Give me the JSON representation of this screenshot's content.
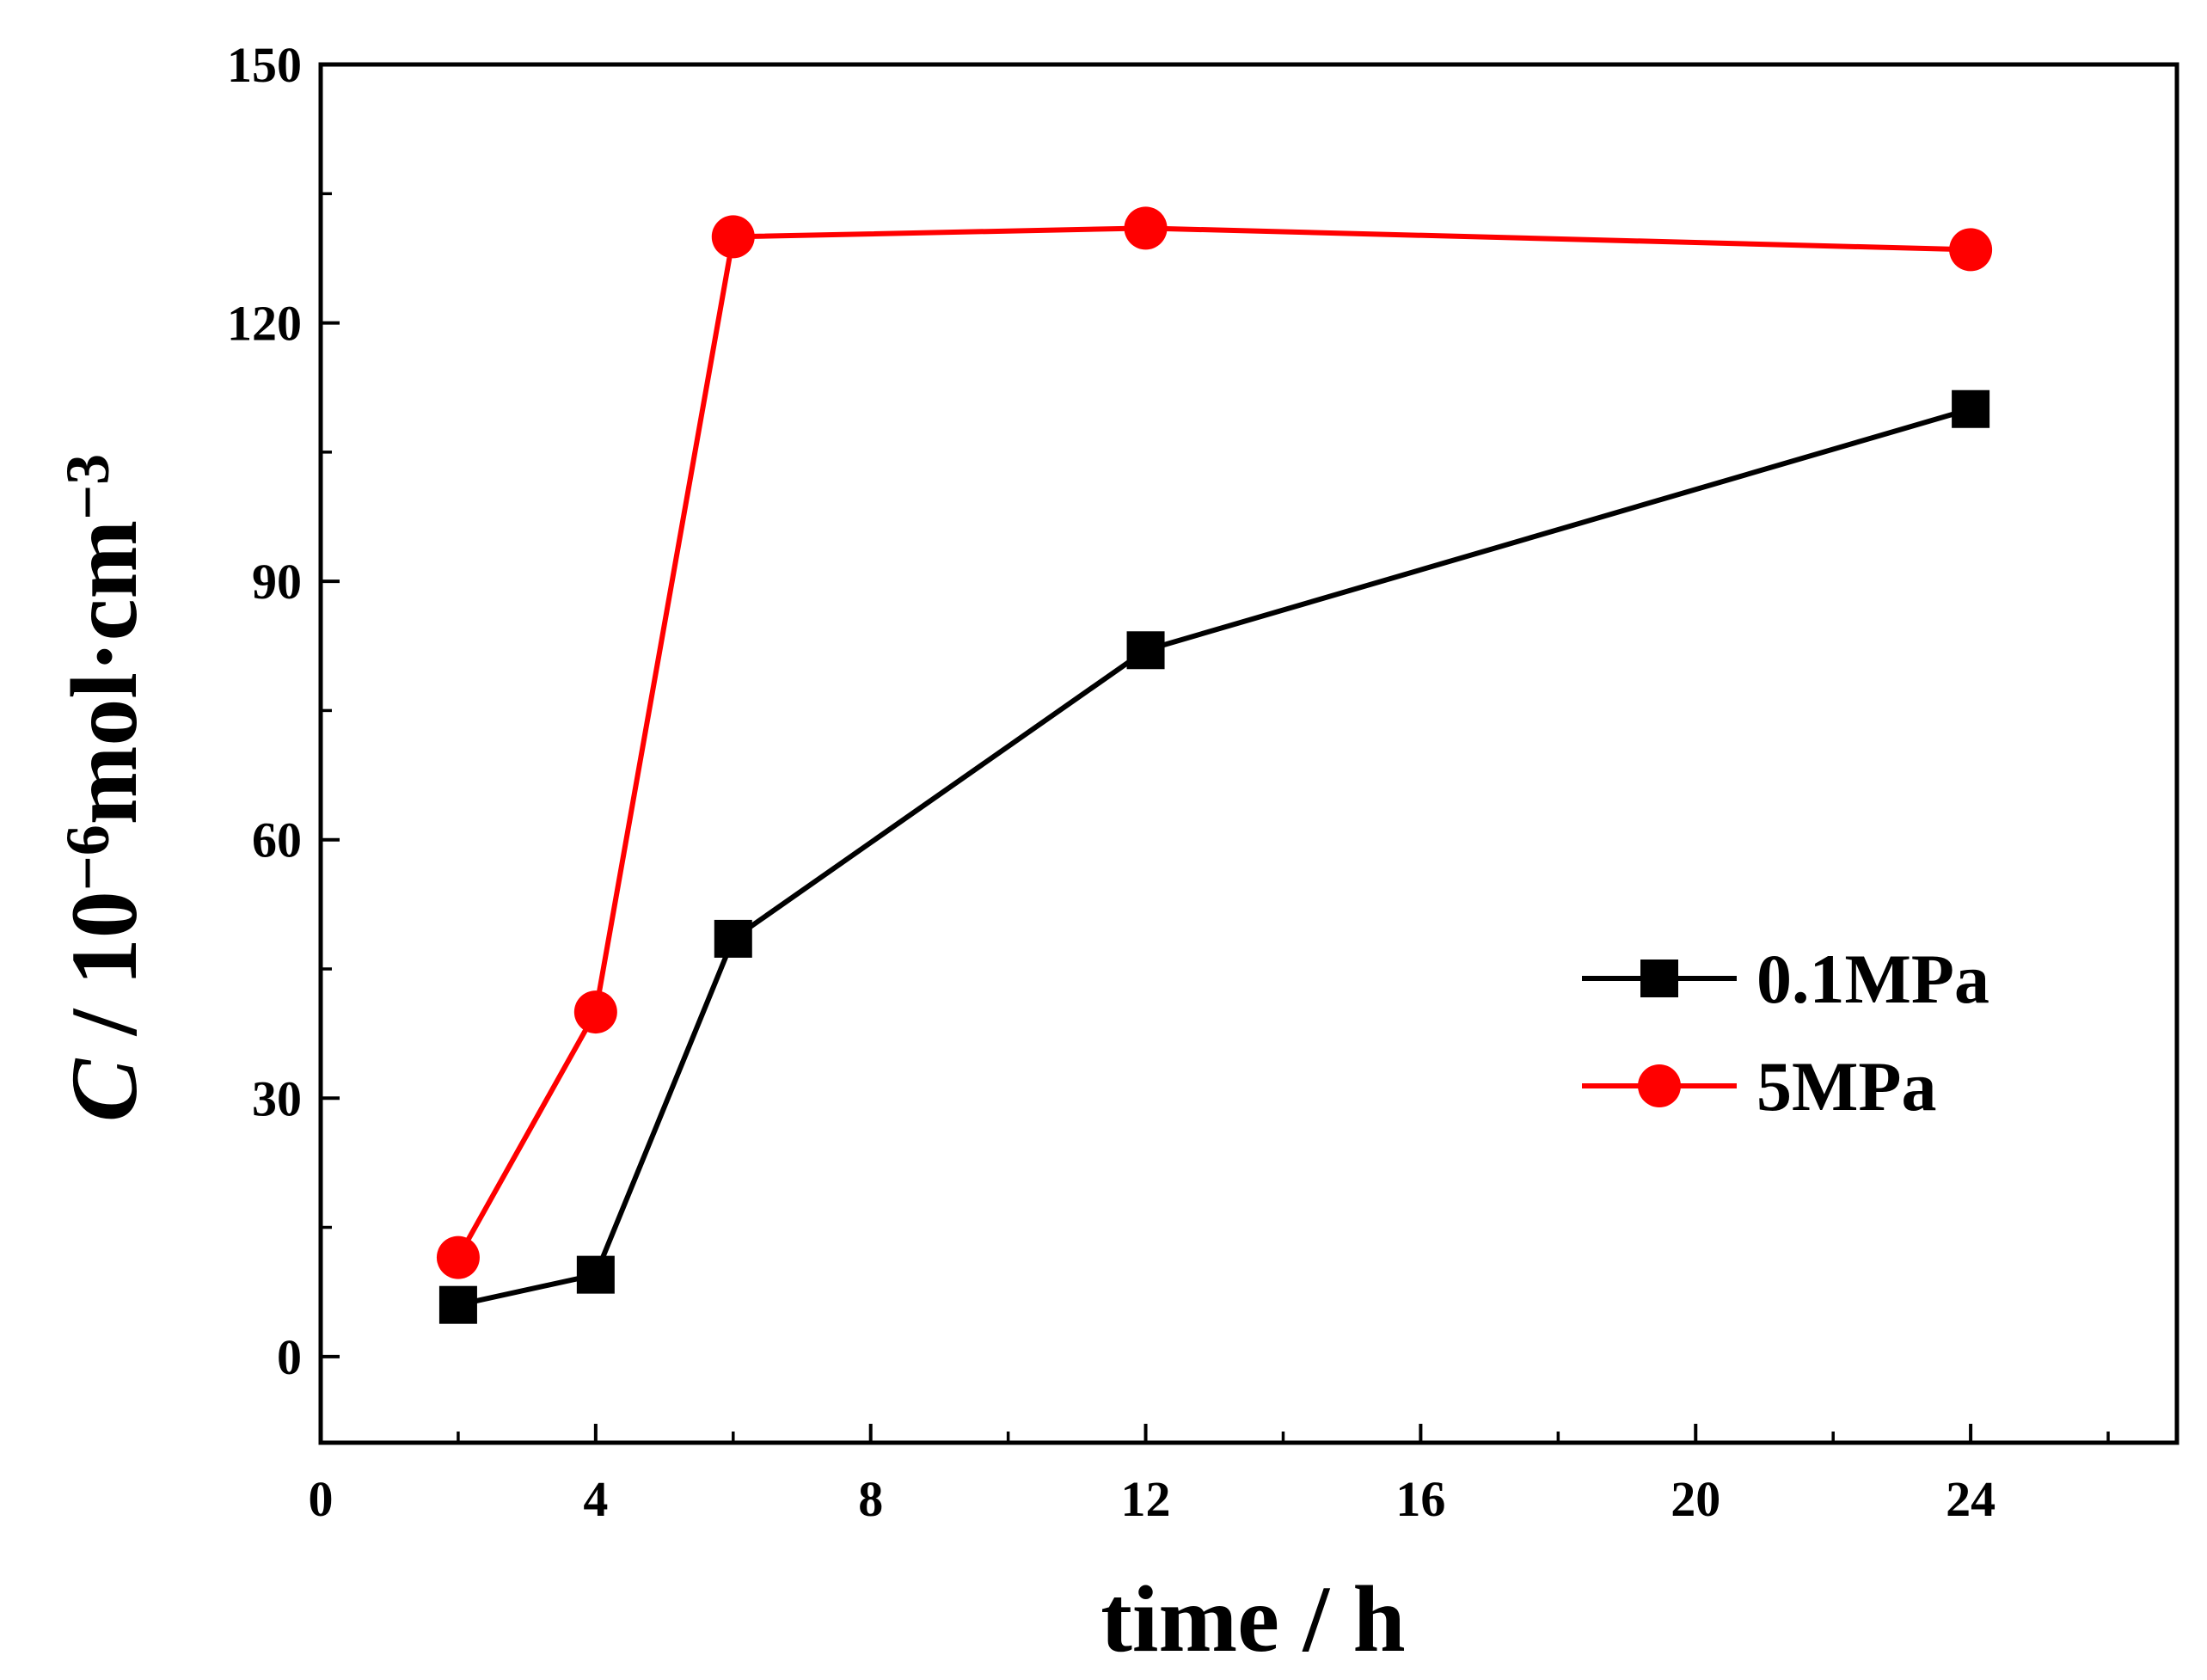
{
  "chart_data": {
    "type": "line",
    "title": "",
    "xlabel": "time / h",
    "ylabel": {
      "symbol": "C",
      "sep": " / ",
      "base": "10",
      "exp": "−6",
      "unit": "mol·cm",
      "unit_exp": "−3"
    },
    "xlim": [
      0,
      27
    ],
    "ylim": [
      -10,
      150
    ],
    "xticks": [
      0,
      4,
      8,
      12,
      16,
      20,
      24
    ],
    "yticks": [
      0,
      30,
      60,
      90,
      120,
      150
    ],
    "series": [
      {
        "name": "0.1MPa",
        "color": "#000000",
        "marker": "square",
        "x": [
          2,
          4,
          6,
          12,
          24
        ],
        "y": [
          6,
          9.5,
          48.5,
          82,
          110
        ]
      },
      {
        "name": "5MPa",
        "color": "#ff0000",
        "marker": "circle",
        "x": [
          2,
          4,
          6,
          12,
          24
        ],
        "y": [
          11.5,
          40,
          130,
          131,
          128.5
        ]
      }
    ],
    "legend": {
      "position": "right-center"
    },
    "grid": false
  }
}
